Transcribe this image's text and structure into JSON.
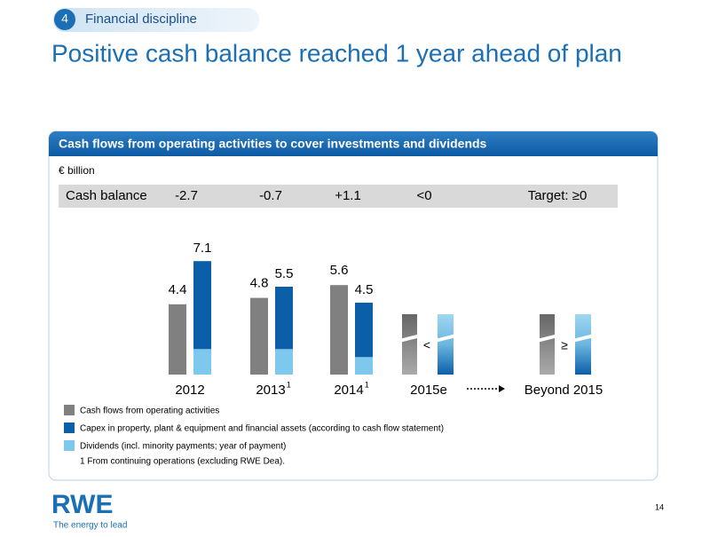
{
  "header": {
    "number": "4",
    "label": "Financial discipline"
  },
  "title": "Positive cash balance reached 1 year ahead of plan",
  "panel_title": "Cash flows from operating activities to cover investments and dividends",
  "unit": "€ billion",
  "cash_balance": {
    "label": "Cash balance",
    "values": [
      -2.7,
      -0.7,
      1.1,
      null
    ],
    "value_labels": [
      "-2.7",
      "-0.7",
      "+1.1",
      "<0"
    ],
    "target": "Target: ≥0"
  },
  "chart_data": {
    "type": "bar",
    "categories": [
      "2012",
      "2013",
      "2014",
      "2015e",
      "Beyond  2015"
    ],
    "category_footnote": "1",
    "comparisons": [
      "<",
      "≥"
    ],
    "series": [
      {
        "name": "Cash flows from operating activities",
        "color": "#808080",
        "values": [
          4.4,
          4.8,
          5.6,
          null,
          null
        ]
      },
      {
        "name": "Capex in property, plant & equipment and financial assets (according to cash flow statement)",
        "color": "#0a5fa8",
        "values": [
          7.1,
          5.5,
          4.5,
          null,
          null
        ]
      },
      {
        "name": "Dividends (incl. minority payments; year of payment)",
        "color": "#7dc8ec",
        "values": [
          1.6,
          1.6,
          1.1,
          null,
          null
        ]
      }
    ]
  },
  "footnote": "1 From continuing operations (excluding RWE Dea).",
  "logo": {
    "name": "RWE",
    "tagline": "The energy to lead"
  },
  "page_number": "14"
}
